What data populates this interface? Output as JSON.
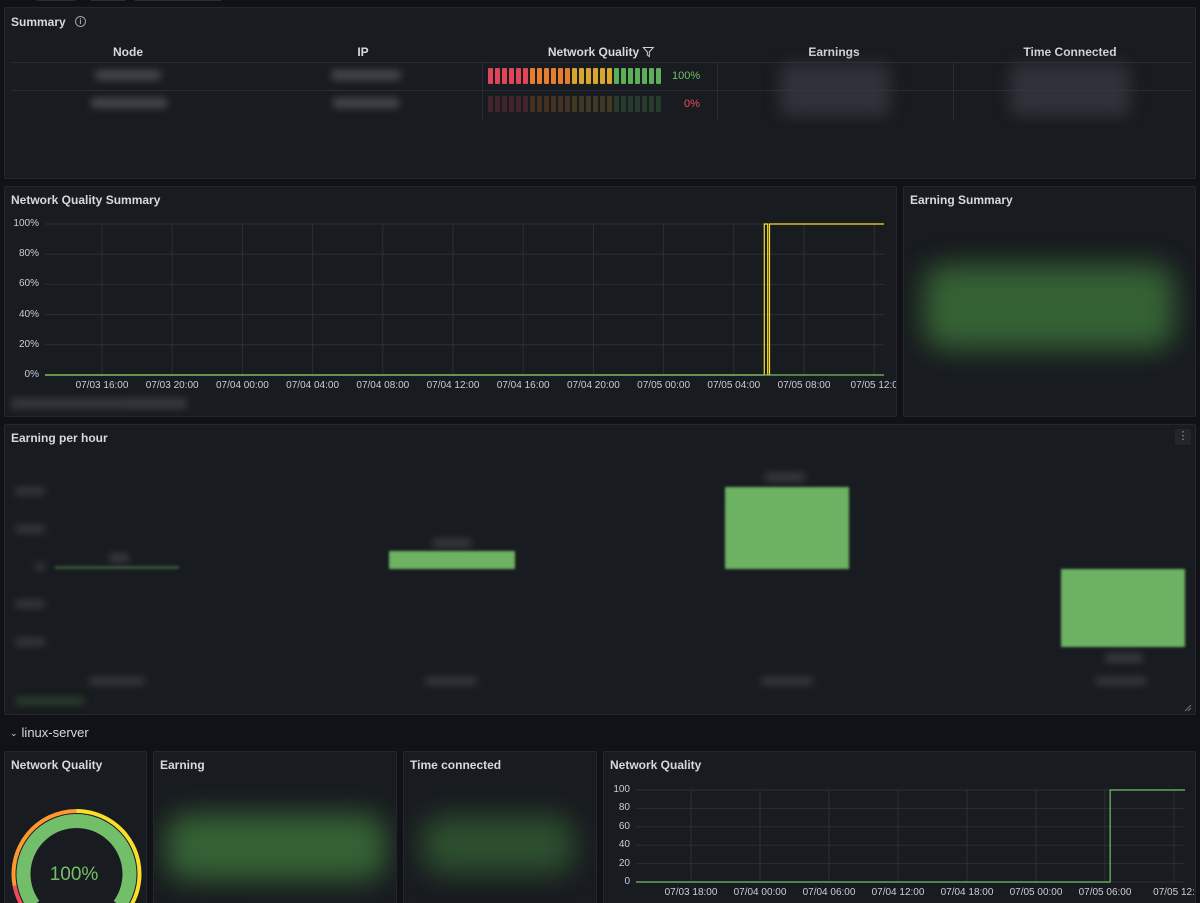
{
  "summary": {
    "title": "Summary",
    "info_icon": "info-circle-icon",
    "columns": [
      "Node",
      "IP",
      "Network Quality",
      "Earnings",
      "Time Connected"
    ],
    "filter_icon": "filter-icon",
    "rows": [
      {
        "quality": 1.0,
        "quality_text": "100%",
        "quality_color": "#73bf69"
      },
      {
        "quality": 0.0,
        "quality_text": "0%",
        "quality_color": "#f2495c"
      }
    ]
  },
  "nq_summary": {
    "title": "Network Quality Summary",
    "chart_data": {
      "type": "line",
      "y_ticks": [
        "100%",
        "80%",
        "60%",
        "40%",
        "20%",
        "0%"
      ],
      "x_ticks": [
        "07/03 16:00",
        "07/03 20:00",
        "07/04 00:00",
        "07/04 04:00",
        "07/04 08:00",
        "07/04 12:00",
        "07/04 16:00",
        "07/04 20:00",
        "07/05 00:00",
        "07/05 04:00",
        "07/05 08:00",
        "07/05 12:0"
      ],
      "ylim": [
        0,
        100
      ],
      "series": [
        {
          "color": "#fade2a",
          "points": [
            [
              "07/03 13:00",
              0
            ],
            [
              "07/05 06:52",
              0
            ],
            [
              "07/05 06:52",
              100
            ],
            [
              "07/05 07:04",
              100
            ],
            [
              "07/05 07:04",
              0
            ],
            [
              "07/05 07:10",
              0
            ],
            [
              "07/05 07:10",
              100
            ],
            [
              "07/05 13:50",
              100
            ]
          ]
        },
        {
          "color": "#73bf69",
          "points": [
            [
              "07/03 13:00",
              0
            ],
            [
              "07/05 13:50",
              0
            ]
          ]
        }
      ]
    }
  },
  "earning_summary": {
    "title": "Earning Summary"
  },
  "earning_per_hour": {
    "title": "Earning per hour",
    "menu_icon": "kebab-menu-icon"
  },
  "section": {
    "label": "linux-server",
    "chevron_icon": "chevron-down-icon"
  },
  "nq_gauge": {
    "title": "Network Quality",
    "value": 1.0,
    "value_text": "100%"
  },
  "earning": {
    "title": "Earning"
  },
  "time_connected": {
    "title": "Time connected"
  },
  "nq_server": {
    "title": "Network Quality",
    "chart_data": {
      "type": "line",
      "y_ticks": [
        "100",
        "80",
        "60",
        "40",
        "20",
        "0"
      ],
      "x_ticks": [
        "07/03 18:00",
        "07/04 00:00",
        "07/04 06:00",
        "07/04 12:00",
        "07/04 18:00",
        "07/05 00:00",
        "07/05 06:00",
        "07/05 12:"
      ],
      "ylim": [
        0,
        100
      ],
      "series": [
        {
          "color": "#73bf69",
          "points": [
            [
              "07/03 13:00",
              0
            ],
            [
              "07/05 07:10",
              0
            ],
            [
              "07/05 07:10",
              100
            ],
            [
              "07/05 13:50",
              100
            ]
          ]
        }
      ]
    }
  }
}
